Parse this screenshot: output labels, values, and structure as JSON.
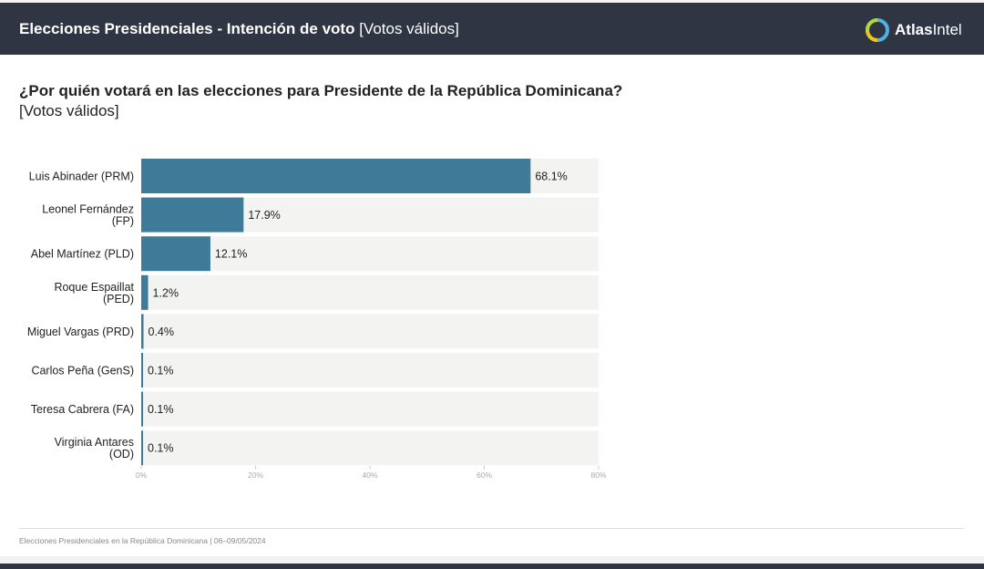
{
  "header": {
    "title_bold": "Elecciones Presidenciales - Intención de voto",
    "title_light": "[Votos válidos]",
    "brand_bold": "Atlas",
    "brand_light": "Intel"
  },
  "question": {
    "text": "¿Por quién votará en las elecciones para Presidente de la República Dominicana?",
    "subtitle": "[Votos válidos]"
  },
  "footer": {
    "text": "Elecciones Presidenciales en la República Dominicana | 06–09/05/2024"
  },
  "colors": {
    "bar": "#3d7b99",
    "track": "#f3f3f2",
    "header": "#2f3542"
  },
  "chart_data": {
    "type": "bar",
    "orientation": "horizontal",
    "title": "¿Por quién votará en las elecciones para Presidente de la República Dominicana?",
    "subtitle": "[Votos válidos]",
    "categories": [
      [
        "Luis Abinader (PRM)"
      ],
      [
        "Leonel Fernández",
        "(FP)"
      ],
      [
        "Abel Martínez (PLD)"
      ],
      [
        "Roque Espaillat",
        "(PED)"
      ],
      [
        "Miguel Vargas (PRD)"
      ],
      [
        "Carlos Peña (GenS)"
      ],
      [
        "Teresa Cabrera (FA)"
      ],
      [
        "Virginia Antares",
        "(OD)"
      ]
    ],
    "values": [
      68.1,
      17.9,
      12.1,
      1.2,
      0.4,
      0.1,
      0.1,
      0.1
    ],
    "value_labels": [
      "68.1%",
      "17.9%",
      "12.1%",
      "1.2%",
      "0.4%",
      "0.1%",
      "0.1%",
      "0.1%"
    ],
    "xlim": [
      0,
      80
    ],
    "ticks": [
      0,
      20,
      40,
      60,
      80
    ],
    "tick_labels": [
      "0%",
      "20%",
      "40%",
      "60%",
      "80%"
    ],
    "grid": false,
    "legend": "none"
  }
}
